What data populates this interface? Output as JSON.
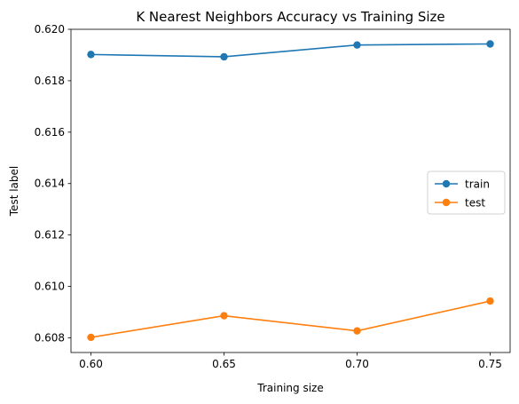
{
  "chart_data": {
    "type": "line",
    "title": "K Nearest Neighbors Accuracy vs Training Size",
    "xlabel": "Training size",
    "ylabel": "Test label",
    "x": [
      0.6,
      0.65,
      0.7,
      0.75
    ],
    "x_tick_labels": [
      "0.60",
      "0.65",
      "0.70",
      "0.75"
    ],
    "y_tick_values": [
      0.608,
      0.61,
      0.612,
      0.614,
      0.616,
      0.618,
      0.62
    ],
    "y_tick_labels": [
      "0.608",
      "0.610",
      "0.612",
      "0.614",
      "0.616",
      "0.618",
      "0.620"
    ],
    "xlim": [
      0.5925,
      0.7575
    ],
    "ylim": [
      0.60743,
      0.62
    ],
    "grid": false,
    "legend_position": "center-right",
    "series": [
      {
        "name": "train",
        "color": "#1f77b4",
        "values": [
          0.61902,
          0.61893,
          0.61939,
          0.61943
        ]
      },
      {
        "name": "test",
        "color": "#ff7f0e",
        "values": [
          0.60802,
          0.60886,
          0.60827,
          0.60943
        ]
      }
    ]
  }
}
